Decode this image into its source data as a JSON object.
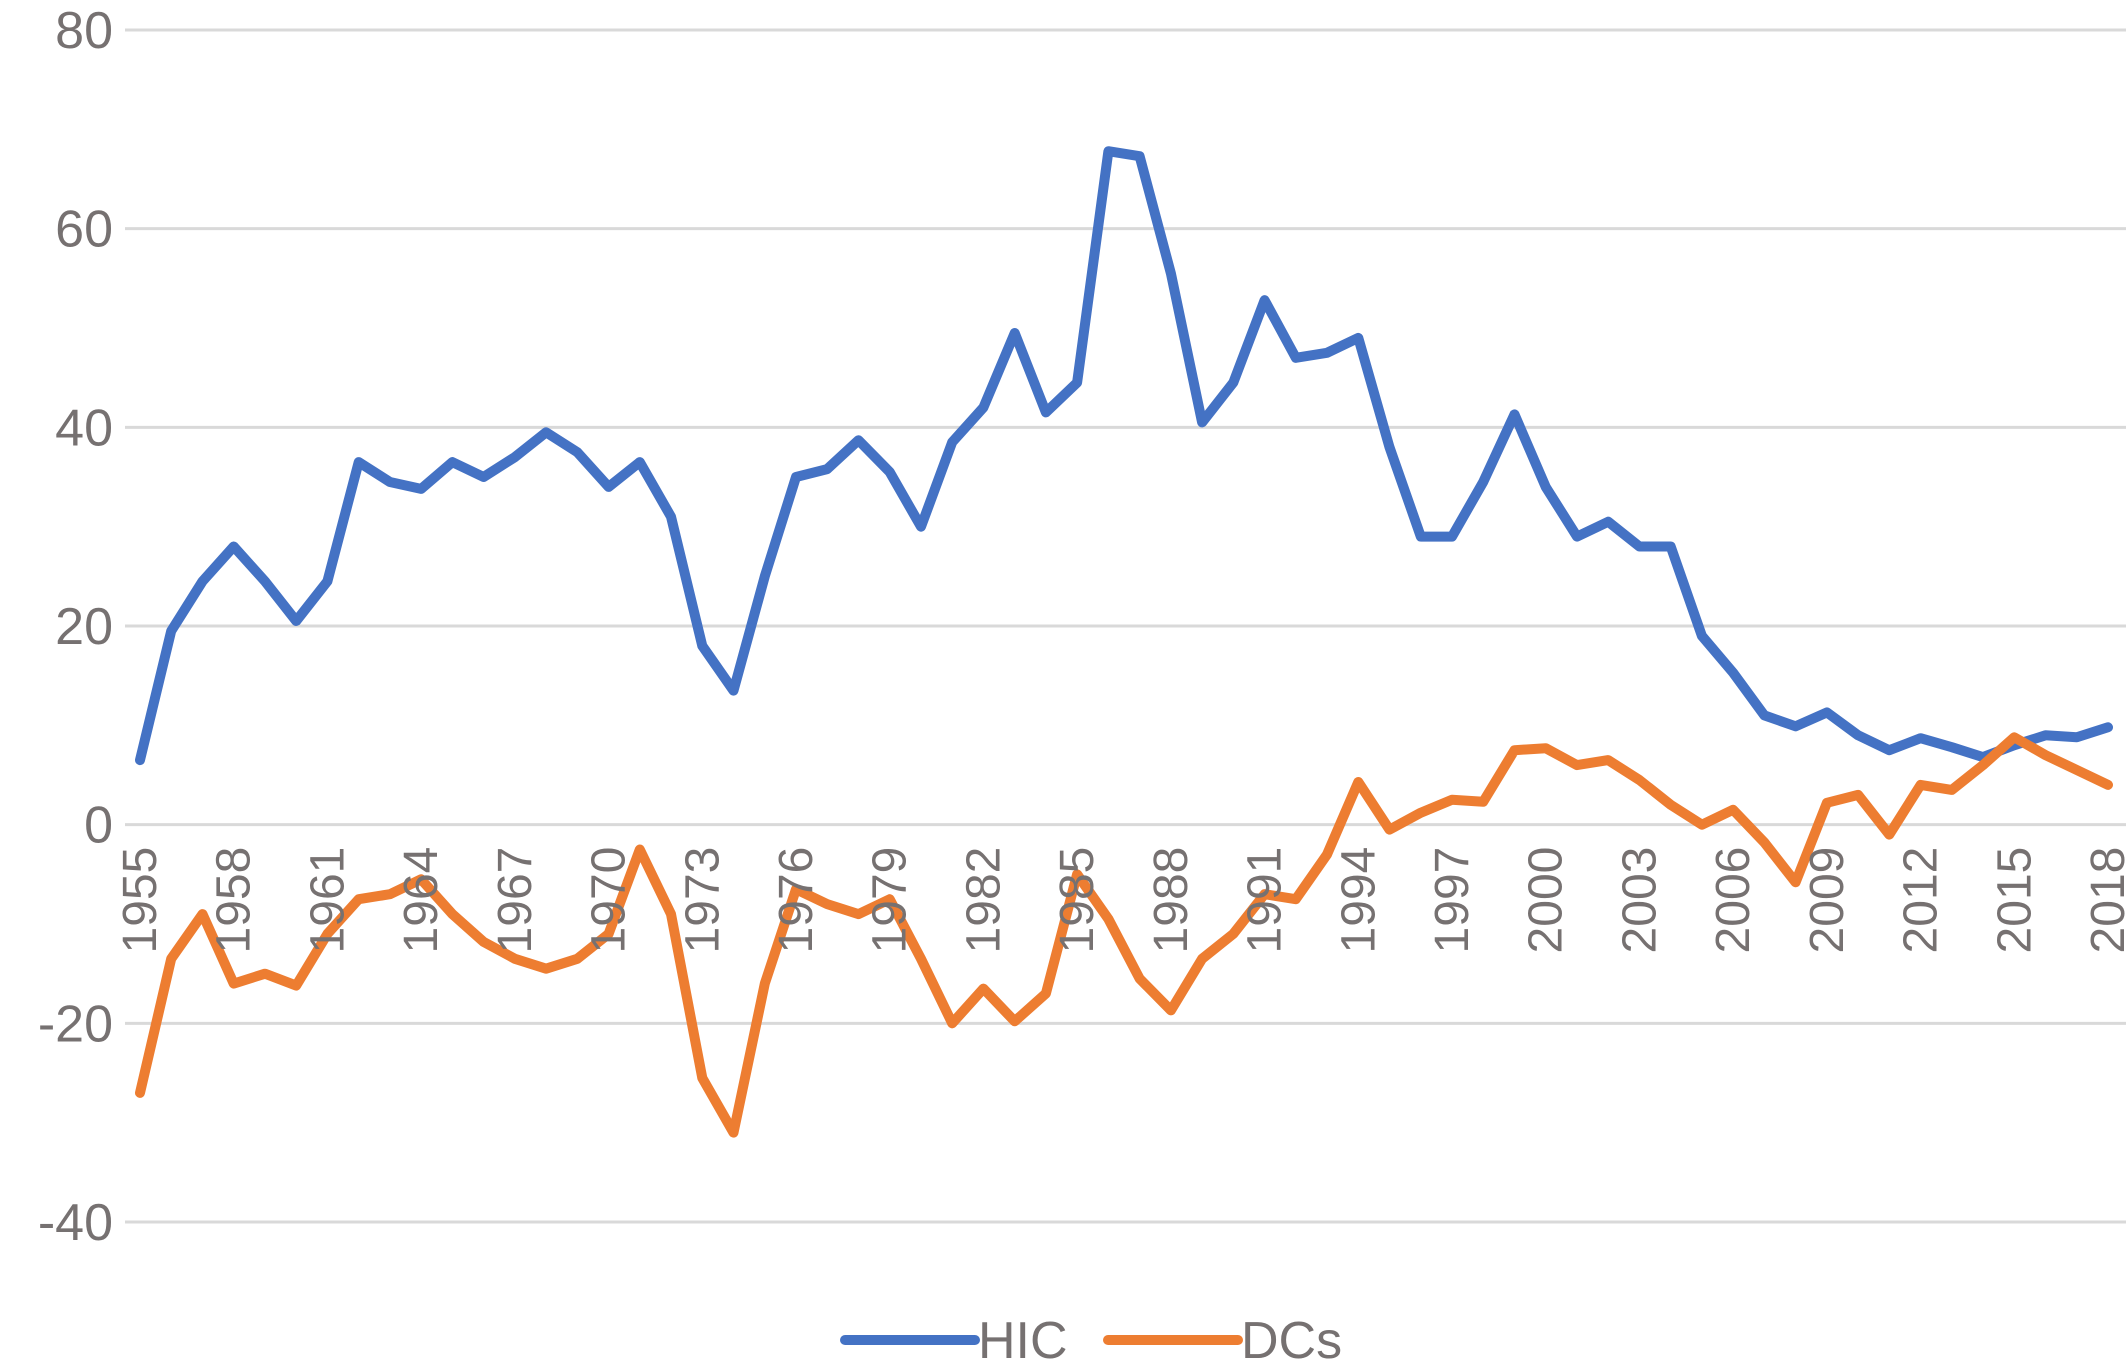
{
  "chart_data": {
    "type": "line",
    "title": "",
    "xlabel": "",
    "ylabel": "",
    "ylim": [
      -40,
      80
    ],
    "yticks": [
      80,
      60,
      40,
      20,
      0,
      -20,
      -40
    ],
    "ytick_labels": [
      "80",
      "60",
      "40",
      "20",
      "0",
      "-20",
      "-40"
    ],
    "grid": true,
    "legend_position": "bottom",
    "x": [
      1955,
      1956,
      1957,
      1958,
      1959,
      1960,
      1961,
      1962,
      1963,
      1964,
      1965,
      1966,
      1967,
      1968,
      1969,
      1970,
      1971,
      1972,
      1973,
      1974,
      1975,
      1976,
      1977,
      1978,
      1979,
      1980,
      1981,
      1982,
      1983,
      1984,
      1985,
      1986,
      1987,
      1988,
      1989,
      1990,
      1991,
      1992,
      1993,
      1994,
      1995,
      1996,
      1997,
      1998,
      1999,
      2000,
      2001,
      2002,
      2003,
      2004,
      2005,
      2006,
      2007,
      2008,
      2009,
      2010,
      2011,
      2012,
      2013,
      2014,
      2015,
      2016,
      2017,
      2018
    ],
    "xtick_labels": [
      "1955",
      "1958",
      "1961",
      "1964",
      "1967",
      "1970",
      "1973",
      "1976",
      "1979",
      "1982",
      "1985",
      "1988",
      "1991",
      "1994",
      "1997",
      "2000",
      "2003",
      "2006",
      "2009",
      "2012",
      "2015",
      "2018"
    ],
    "series": [
      {
        "name": "HIC",
        "color": "#4472c4",
        "values": [
          6.5,
          19.5,
          24.5,
          28,
          24.5,
          20.5,
          24.5,
          36.5,
          34.5,
          33.8,
          36.5,
          35,
          37,
          39.5,
          37.5,
          34,
          36.5,
          31,
          18,
          13.5,
          25,
          35,
          35.8,
          38.7,
          35.5,
          30,
          38.5,
          42,
          49.5,
          41.5,
          44.5,
          67.8,
          67.3,
          55.5,
          40.5,
          44.5,
          52.8,
          47,
          47.5,
          49,
          38,
          29,
          29,
          34.5,
          41.3,
          34,
          29,
          30.5,
          28,
          28,
          19,
          15.3,
          11,
          9.9,
          11.3,
          9,
          7.5,
          8.7,
          7.8,
          6.8,
          8,
          9,
          8.8,
          9.8
        ]
      },
      {
        "name": "DCs",
        "color": "#ed7d31",
        "values": [
          -27,
          -13.5,
          -9,
          -16,
          -15,
          -16.2,
          -11,
          -7.5,
          -7,
          -5.5,
          -9,
          -11.8,
          -13.5,
          -14.5,
          -13.5,
          -11,
          -2.5,
          -9,
          -25.5,
          -31,
          -16,
          -6.5,
          -8,
          -9,
          -7.5,
          -13.5,
          -20,
          -16.5,
          -19.8,
          -17,
          -5,
          -9.5,
          -15.5,
          -18.7,
          -13.5,
          -11,
          -7,
          -7.5,
          -3,
          4.3,
          -0.5,
          1.2,
          2.5,
          2.3,
          7.5,
          7.7,
          6,
          6.5,
          4.5,
          2,
          0,
          1.5,
          -1.8,
          -5.8,
          2.2,
          3,
          -1,
          4,
          3.5,
          6,
          8.8,
          7,
          5.5,
          4
        ]
      }
    ]
  }
}
